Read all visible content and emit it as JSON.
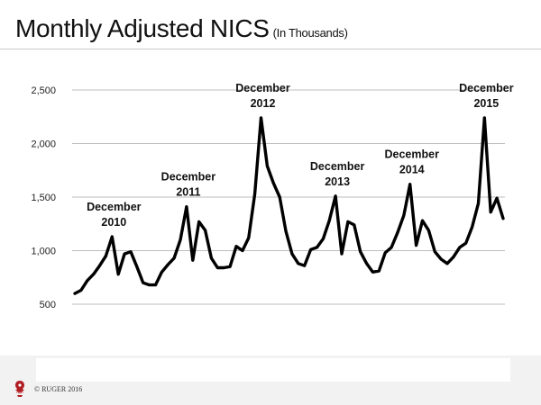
{
  "slide": {
    "title": "Monthly Adjusted NICS",
    "subtitle": "(In Thousands)",
    "footer_copyright": "© RUGER 2016"
  },
  "chart_data": {
    "type": "line",
    "title": "Monthly Adjusted NICS",
    "subtitle": "(In Thousands)",
    "xlabel": "",
    "ylabel": "",
    "ylim": [
      500,
      2500
    ],
    "yticks": [
      500,
      1000,
      1500,
      2000,
      2500
    ],
    "ytick_labels": [
      "500",
      "1,000",
      "1,500",
      "2,000",
      "2,500"
    ],
    "grid": true,
    "legend": "none",
    "line_color": "#000000",
    "series": [
      {
        "values": [
          600,
          630,
          720,
          780,
          860,
          950,
          1130,
          780,
          970,
          990,
          850,
          700,
          680,
          680,
          800,
          870,
          930,
          1100,
          1410,
          910,
          1270,
          1190,
          930,
          840,
          840,
          850,
          1040,
          1000,
          1120,
          1530,
          2240,
          1790,
          1630,
          1500,
          1180,
          970,
          880,
          860,
          1010,
          1030,
          1110,
          1280,
          1510,
          970,
          1270,
          1240,
          990,
          880,
          800,
          810,
          980,
          1030,
          1170,
          1330,
          1620,
          1050,
          1280,
          1190,
          990,
          920,
          880,
          940,
          1030,
          1070,
          1220,
          1440,
          2240,
          1360,
          1490,
          1300
        ]
      }
    ],
    "annotations": [
      {
        "lines": [
          "December",
          "2010"
        ],
        "index": 6
      },
      {
        "lines": [
          "December",
          "2011"
        ],
        "index": 18
      },
      {
        "lines": [
          "December",
          "2012"
        ],
        "index": 30
      },
      {
        "lines": [
          "December",
          "2013"
        ],
        "index": 42
      },
      {
        "lines": [
          "December",
          "2014"
        ],
        "index": 54
      },
      {
        "lines": [
          "December",
          "2015"
        ],
        "index": 66
      }
    ]
  }
}
